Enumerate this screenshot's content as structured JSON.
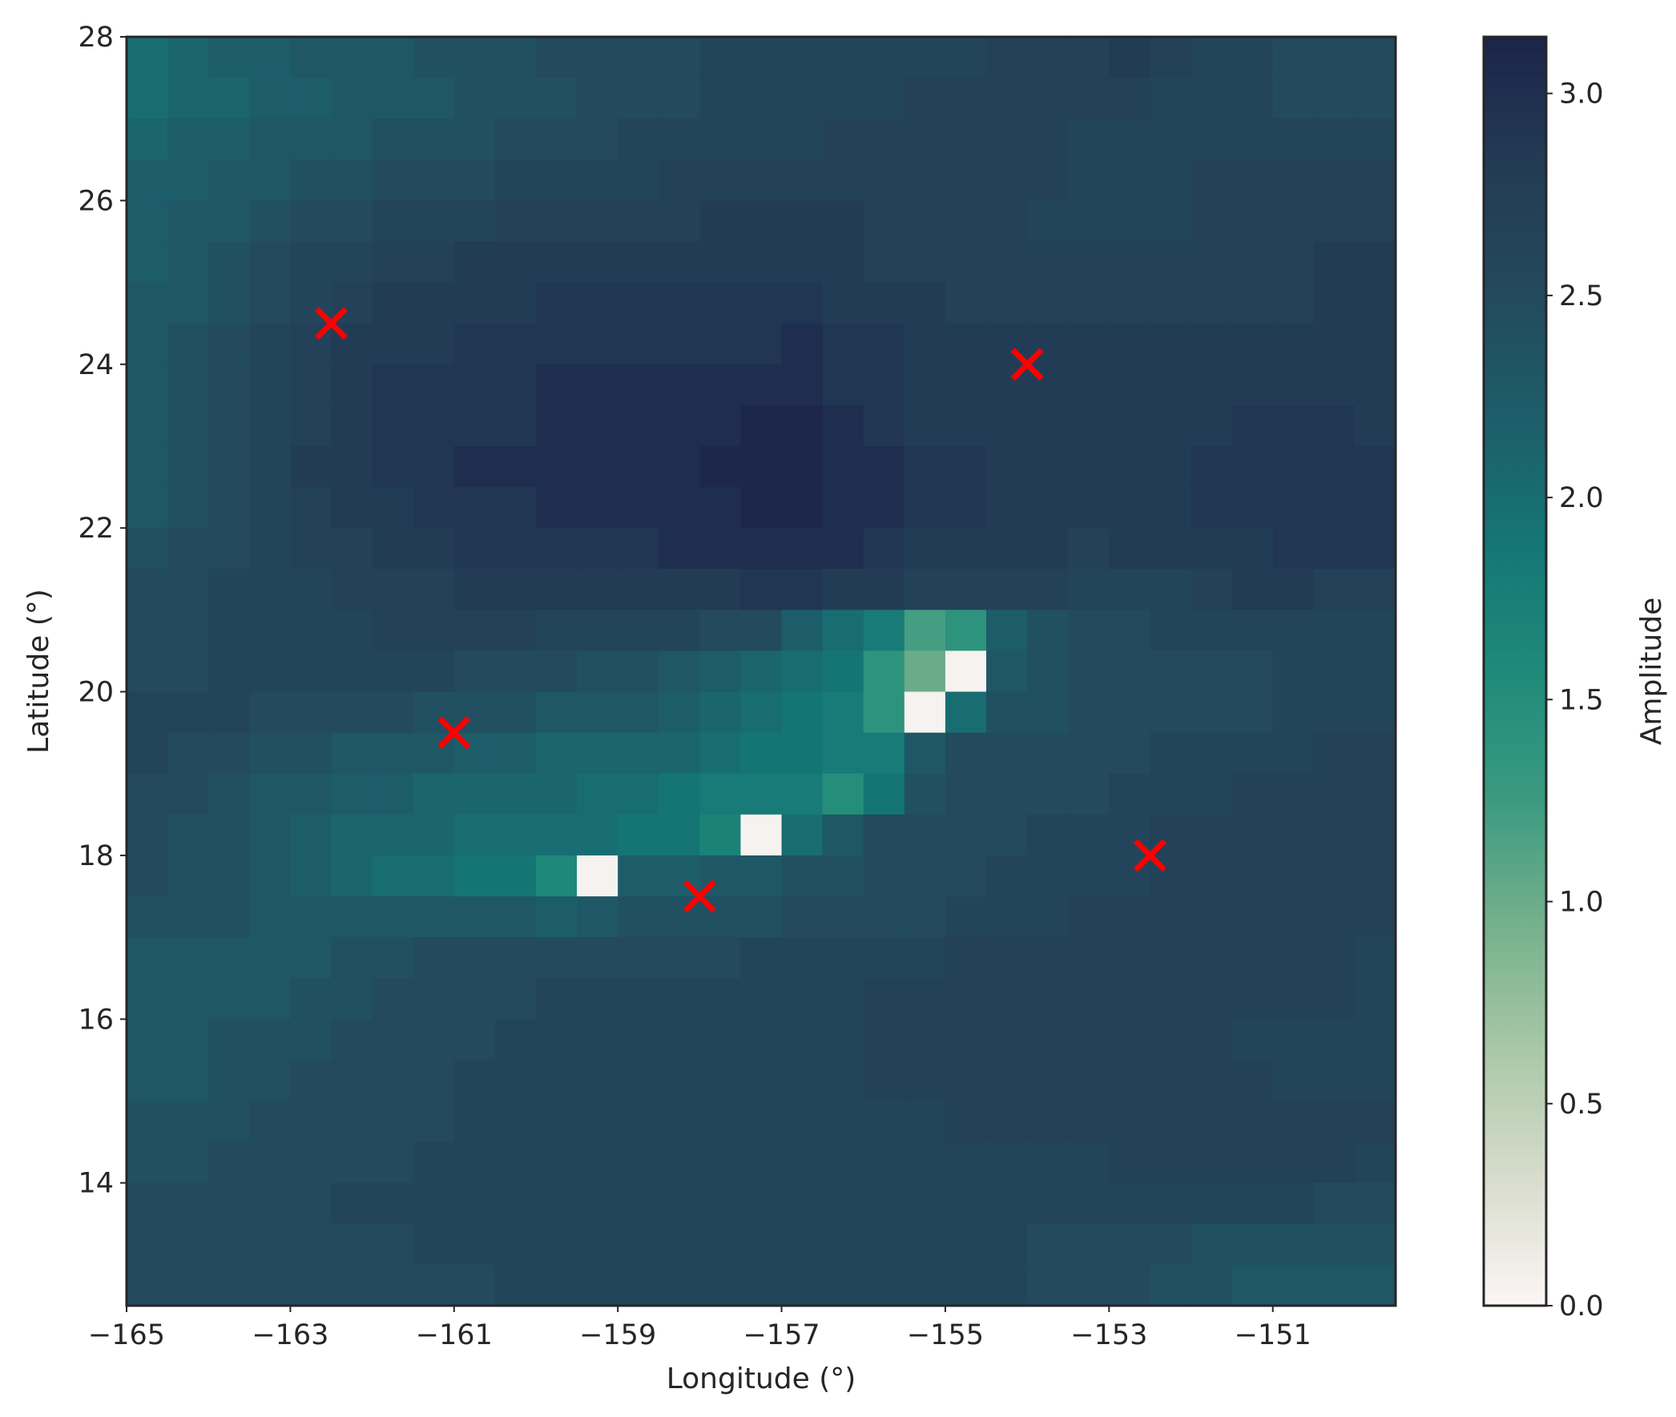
{
  "chart_data": {
    "type": "heatmap",
    "title": "",
    "xlabel": "Longitude (°)",
    "ylabel": "Latitude (°)",
    "xlim": [
      -165,
      -149.5
    ],
    "ylim": [
      12.5,
      28
    ],
    "xticks": [
      -165,
      -163,
      -161,
      -159,
      -157,
      -155,
      -153,
      -151
    ],
    "xtick_labels": [
      "−165",
      "−163",
      "−161",
      "−159",
      "−157",
      "−155",
      "−153",
      "−151"
    ],
    "yticks": [
      14,
      16,
      18,
      20,
      22,
      24,
      26,
      28
    ],
    "ytick_labels": [
      "14",
      "16",
      "18",
      "20",
      "22",
      "24",
      "26",
      "28"
    ],
    "grid": false,
    "cell_size_deg": 0.5,
    "colorbar": {
      "label": "Amplitude",
      "range": [
        0,
        3.14
      ],
      "ticks": [
        0.0,
        0.5,
        1.0,
        1.5,
        2.0,
        2.5,
        3.0
      ],
      "tick_labels": [
        "0.0",
        "0.5",
        "1.0",
        "1.5",
        "2.0",
        "2.5",
        "3.0"
      ],
      "colormap_stops": [
        "#fcf6f5",
        "#d8dccd",
        "#a9c8a7",
        "#75b08c",
        "#3a9a80",
        "#1f8a7a",
        "#157676",
        "#1d5d6a",
        "#23495d",
        "#233b55",
        "#1c2449"
      ]
    },
    "grid_values": [
      [
        2.0,
        2.1,
        2.2,
        2.2,
        2.3,
        2.3,
        2.3,
        2.4,
        2.4,
        2.4,
        2.5,
        2.5,
        2.5,
        2.5,
        2.6,
        2.6,
        2.6,
        2.6,
        2.6,
        2.6,
        2.6,
        2.7,
        2.7,
        2.7,
        2.8,
        2.7,
        2.6,
        2.6,
        2.5,
        2.5,
        2.5
      ],
      [
        2.0,
        2.1,
        2.1,
        2.2,
        2.2,
        2.3,
        2.3,
        2.3,
        2.4,
        2.4,
        2.4,
        2.5,
        2.5,
        2.5,
        2.6,
        2.6,
        2.6,
        2.6,
        2.6,
        2.7,
        2.7,
        2.7,
        2.7,
        2.7,
        2.7,
        2.6,
        2.6,
        2.6,
        2.5,
        2.5,
        2.5
      ],
      [
        2.1,
        2.2,
        2.2,
        2.3,
        2.3,
        2.3,
        2.4,
        2.4,
        2.4,
        2.5,
        2.5,
        2.5,
        2.6,
        2.6,
        2.6,
        2.6,
        2.6,
        2.7,
        2.7,
        2.7,
        2.7,
        2.7,
        2.7,
        2.6,
        2.6,
        2.6,
        2.6,
        2.6,
        2.6,
        2.6,
        2.6
      ],
      [
        2.2,
        2.2,
        2.3,
        2.3,
        2.4,
        2.4,
        2.5,
        2.5,
        2.5,
        2.6,
        2.6,
        2.6,
        2.6,
        2.7,
        2.7,
        2.7,
        2.7,
        2.7,
        2.7,
        2.7,
        2.7,
        2.7,
        2.7,
        2.6,
        2.6,
        2.6,
        2.7,
        2.7,
        2.7,
        2.7,
        2.7
      ],
      [
        2.2,
        2.3,
        2.3,
        2.4,
        2.5,
        2.5,
        2.6,
        2.6,
        2.6,
        2.7,
        2.7,
        2.7,
        2.7,
        2.7,
        2.8,
        2.8,
        2.8,
        2.8,
        2.7,
        2.7,
        2.7,
        2.7,
        2.6,
        2.6,
        2.6,
        2.6,
        2.7,
        2.7,
        2.7,
        2.7,
        2.7
      ],
      [
        2.2,
        2.3,
        2.4,
        2.5,
        2.6,
        2.6,
        2.7,
        2.7,
        2.8,
        2.8,
        2.8,
        2.8,
        2.8,
        2.8,
        2.8,
        2.8,
        2.8,
        2.8,
        2.7,
        2.7,
        2.7,
        2.7,
        2.7,
        2.7,
        2.7,
        2.7,
        2.7,
        2.7,
        2.7,
        2.8,
        2.8
      ],
      [
        2.3,
        2.3,
        2.4,
        2.5,
        2.6,
        2.7,
        2.8,
        2.8,
        2.8,
        2.8,
        2.9,
        2.9,
        2.9,
        2.9,
        2.9,
        2.9,
        2.9,
        2.8,
        2.8,
        2.8,
        2.7,
        2.7,
        2.7,
        2.7,
        2.7,
        2.7,
        2.7,
        2.7,
        2.7,
        2.8,
        2.8
      ],
      [
        2.3,
        2.4,
        2.5,
        2.6,
        2.7,
        2.8,
        2.8,
        2.8,
        2.9,
        2.9,
        2.9,
        2.9,
        2.9,
        2.9,
        2.9,
        2.9,
        3.0,
        2.9,
        2.9,
        2.8,
        2.8,
        2.8,
        2.8,
        2.8,
        2.8,
        2.8,
        2.8,
        2.8,
        2.8,
        2.8,
        2.8
      ],
      [
        2.3,
        2.4,
        2.5,
        2.6,
        2.7,
        2.8,
        2.9,
        2.9,
        2.9,
        2.9,
        3.0,
        3.0,
        3.0,
        3.0,
        3.0,
        3.0,
        3.0,
        2.9,
        2.9,
        2.8,
        2.8,
        2.8,
        2.8,
        2.8,
        2.8,
        2.8,
        2.8,
        2.8,
        2.8,
        2.8,
        2.8
      ],
      [
        2.3,
        2.4,
        2.5,
        2.6,
        2.7,
        2.8,
        2.9,
        2.9,
        2.9,
        2.9,
        3.0,
        3.0,
        3.0,
        3.0,
        3.0,
        3.1,
        3.1,
        3.0,
        2.9,
        2.8,
        2.8,
        2.8,
        2.8,
        2.8,
        2.8,
        2.8,
        2.8,
        2.9,
        2.9,
        2.9,
        2.8
      ],
      [
        2.3,
        2.4,
        2.5,
        2.6,
        2.8,
        2.8,
        2.9,
        2.9,
        3.0,
        3.0,
        3.0,
        3.0,
        3.0,
        3.0,
        3.1,
        3.1,
        3.1,
        3.0,
        3.0,
        2.9,
        2.9,
        2.8,
        2.8,
        2.8,
        2.8,
        2.8,
        2.9,
        2.9,
        2.9,
        2.9,
        2.9
      ],
      [
        2.3,
        2.4,
        2.5,
        2.6,
        2.7,
        2.8,
        2.8,
        2.9,
        2.9,
        2.9,
        3.0,
        3.0,
        3.0,
        3.0,
        3.0,
        3.1,
        3.1,
        3.0,
        3.0,
        2.9,
        2.9,
        2.8,
        2.8,
        2.8,
        2.8,
        2.8,
        2.9,
        2.9,
        2.9,
        2.9,
        2.9
      ],
      [
        2.4,
        2.5,
        2.5,
        2.6,
        2.7,
        2.7,
        2.8,
        2.8,
        2.9,
        2.9,
        2.9,
        2.9,
        2.9,
        3.0,
        3.0,
        3.0,
        3.0,
        3.0,
        2.9,
        2.8,
        2.8,
        2.8,
        2.8,
        2.7,
        2.8,
        2.8,
        2.8,
        2.8,
        2.9,
        2.9,
        2.9
      ],
      [
        2.5,
        2.5,
        2.6,
        2.6,
        2.6,
        2.7,
        2.7,
        2.7,
        2.8,
        2.8,
        2.8,
        2.8,
        2.8,
        2.8,
        2.8,
        2.9,
        2.9,
        2.8,
        2.8,
        2.7,
        2.7,
        2.7,
        2.7,
        2.6,
        2.6,
        2.6,
        2.7,
        2.8,
        2.8,
        2.7,
        2.7
      ],
      [
        2.5,
        2.5,
        2.6,
        2.6,
        2.6,
        2.6,
        2.7,
        2.7,
        2.7,
        2.7,
        2.6,
        2.6,
        2.6,
        2.6,
        2.5,
        2.5,
        2.2,
        2.0,
        1.8,
        1.2,
        1.4,
        2.2,
        2.4,
        2.5,
        2.5,
        2.6,
        2.6,
        2.6,
        2.6,
        2.6,
        2.6
      ],
      [
        2.5,
        2.5,
        2.6,
        2.6,
        2.6,
        2.6,
        2.6,
        2.6,
        2.5,
        2.5,
        2.5,
        2.4,
        2.4,
        2.3,
        2.2,
        2.1,
        2.0,
        1.9,
        1.4,
        1.0,
        0.05,
        2.3,
        2.4,
        2.5,
        2.5,
        2.5,
        2.5,
        2.5,
        2.6,
        2.6,
        2.6
      ],
      [
        2.6,
        2.6,
        2.6,
        2.5,
        2.5,
        2.5,
        2.5,
        2.4,
        2.4,
        2.4,
        2.3,
        2.3,
        2.3,
        2.2,
        2.1,
        2.0,
        1.9,
        1.8,
        1.4,
        0.05,
        2.0,
        2.4,
        2.4,
        2.5,
        2.5,
        2.5,
        2.5,
        2.5,
        2.6,
        2.6,
        2.6
      ],
      [
        2.6,
        2.5,
        2.5,
        2.4,
        2.4,
        2.3,
        2.3,
        2.3,
        2.2,
        2.2,
        2.1,
        2.1,
        2.1,
        2.1,
        2.0,
        1.9,
        1.9,
        1.8,
        1.8,
        2.3,
        2.5,
        2.5,
        2.5,
        2.5,
        2.5,
        2.6,
        2.6,
        2.6,
        2.6,
        2.7,
        2.7
      ],
      [
        2.5,
        2.5,
        2.4,
        2.3,
        2.3,
        2.2,
        2.2,
        2.1,
        2.1,
        2.1,
        2.1,
        2.0,
        2.0,
        1.9,
        1.8,
        1.8,
        1.8,
        1.5,
        1.9,
        2.4,
        2.5,
        2.5,
        2.5,
        2.5,
        2.6,
        2.6,
        2.6,
        2.7,
        2.7,
        2.7,
        2.7
      ],
      [
        2.5,
        2.4,
        2.4,
        2.3,
        2.2,
        2.1,
        2.1,
        2.1,
        2.0,
        2.0,
        2.0,
        2.0,
        1.9,
        1.9,
        1.7,
        0.05,
        2.0,
        2.3,
        2.5,
        2.5,
        2.5,
        2.5,
        2.6,
        2.6,
        2.6,
        2.7,
        2.7,
        2.7,
        2.7,
        2.7,
        2.7
      ],
      [
        2.5,
        2.4,
        2.4,
        2.3,
        2.2,
        2.1,
        2.0,
        2.0,
        1.9,
        1.9,
        1.6,
        0.05,
        2.2,
        2.2,
        2.3,
        2.3,
        2.4,
        2.4,
        2.5,
        2.5,
        2.5,
        2.6,
        2.6,
        2.6,
        2.6,
        2.7,
        2.7,
        2.7,
        2.7,
        2.7,
        2.7
      ],
      [
        2.4,
        2.4,
        2.4,
        2.3,
        2.3,
        2.3,
        2.3,
        2.3,
        2.3,
        2.3,
        2.2,
        2.3,
        2.4,
        2.4,
        2.4,
        2.4,
        2.5,
        2.5,
        2.5,
        2.5,
        2.6,
        2.6,
        2.6,
        2.7,
        2.7,
        2.7,
        2.7,
        2.7,
        2.7,
        2.7,
        2.7
      ],
      [
        2.3,
        2.3,
        2.3,
        2.3,
        2.3,
        2.4,
        2.4,
        2.5,
        2.5,
        2.5,
        2.5,
        2.5,
        2.5,
        2.5,
        2.5,
        2.6,
        2.6,
        2.6,
        2.6,
        2.6,
        2.7,
        2.7,
        2.7,
        2.7,
        2.7,
        2.7,
        2.7,
        2.7,
        2.7,
        2.7,
        2.6
      ],
      [
        2.3,
        2.3,
        2.3,
        2.3,
        2.4,
        2.4,
        2.5,
        2.5,
        2.5,
        2.5,
        2.6,
        2.6,
        2.6,
        2.6,
        2.6,
        2.6,
        2.6,
        2.6,
        2.7,
        2.7,
        2.7,
        2.7,
        2.7,
        2.7,
        2.7,
        2.7,
        2.7,
        2.7,
        2.7,
        2.7,
        2.6
      ],
      [
        2.3,
        2.3,
        2.4,
        2.4,
        2.4,
        2.5,
        2.5,
        2.5,
        2.5,
        2.6,
        2.6,
        2.6,
        2.6,
        2.6,
        2.6,
        2.6,
        2.6,
        2.6,
        2.7,
        2.7,
        2.7,
        2.7,
        2.7,
        2.7,
        2.7,
        2.7,
        2.7,
        2.6,
        2.6,
        2.6,
        2.6
      ],
      [
        2.3,
        2.3,
        2.4,
        2.4,
        2.5,
        2.5,
        2.5,
        2.5,
        2.6,
        2.6,
        2.6,
        2.6,
        2.6,
        2.6,
        2.6,
        2.6,
        2.6,
        2.6,
        2.7,
        2.7,
        2.7,
        2.7,
        2.7,
        2.7,
        2.7,
        2.7,
        2.7,
        2.7,
        2.6,
        2.6,
        2.6
      ],
      [
        2.4,
        2.4,
        2.4,
        2.5,
        2.5,
        2.5,
        2.5,
        2.5,
        2.6,
        2.6,
        2.6,
        2.6,
        2.6,
        2.6,
        2.6,
        2.6,
        2.6,
        2.6,
        2.6,
        2.6,
        2.7,
        2.7,
        2.7,
        2.7,
        2.7,
        2.7,
        2.7,
        2.7,
        2.7,
        2.7,
        2.7
      ],
      [
        2.4,
        2.4,
        2.5,
        2.5,
        2.5,
        2.5,
        2.5,
        2.6,
        2.6,
        2.6,
        2.6,
        2.6,
        2.6,
        2.6,
        2.6,
        2.6,
        2.6,
        2.6,
        2.6,
        2.6,
        2.6,
        2.6,
        2.6,
        2.6,
        2.7,
        2.7,
        2.7,
        2.7,
        2.7,
        2.7,
        2.6
      ],
      [
        2.5,
        2.5,
        2.5,
        2.5,
        2.5,
        2.6,
        2.6,
        2.6,
        2.6,
        2.6,
        2.6,
        2.6,
        2.6,
        2.6,
        2.6,
        2.6,
        2.6,
        2.6,
        2.6,
        2.6,
        2.6,
        2.6,
        2.6,
        2.6,
        2.6,
        2.6,
        2.6,
        2.6,
        2.6,
        2.5,
        2.5
      ],
      [
        2.5,
        2.5,
        2.5,
        2.5,
        2.5,
        2.5,
        2.5,
        2.6,
        2.6,
        2.6,
        2.6,
        2.6,
        2.6,
        2.6,
        2.6,
        2.6,
        2.6,
        2.6,
        2.6,
        2.6,
        2.6,
        2.6,
        2.5,
        2.5,
        2.5,
        2.5,
        2.4,
        2.4,
        2.4,
        2.4,
        2.4
      ],
      [
        2.5,
        2.5,
        2.5,
        2.5,
        2.5,
        2.5,
        2.5,
        2.5,
        2.5,
        2.6,
        2.6,
        2.6,
        2.6,
        2.6,
        2.6,
        2.6,
        2.6,
        2.6,
        2.6,
        2.6,
        2.6,
        2.6,
        2.5,
        2.5,
        2.5,
        2.4,
        2.4,
        2.3,
        2.3,
        2.3,
        2.3
      ]
    ],
    "markers": {
      "symbol": "x",
      "color": "#ff0000",
      "points": [
        {
          "lon": -162.5,
          "lat": 24.5
        },
        {
          "lon": -154.0,
          "lat": 24.0
        },
        {
          "lon": -161.0,
          "lat": 19.5
        },
        {
          "lon": -152.5,
          "lat": 18.0
        },
        {
          "lon": -158.0,
          "lat": 17.5
        }
      ]
    }
  }
}
